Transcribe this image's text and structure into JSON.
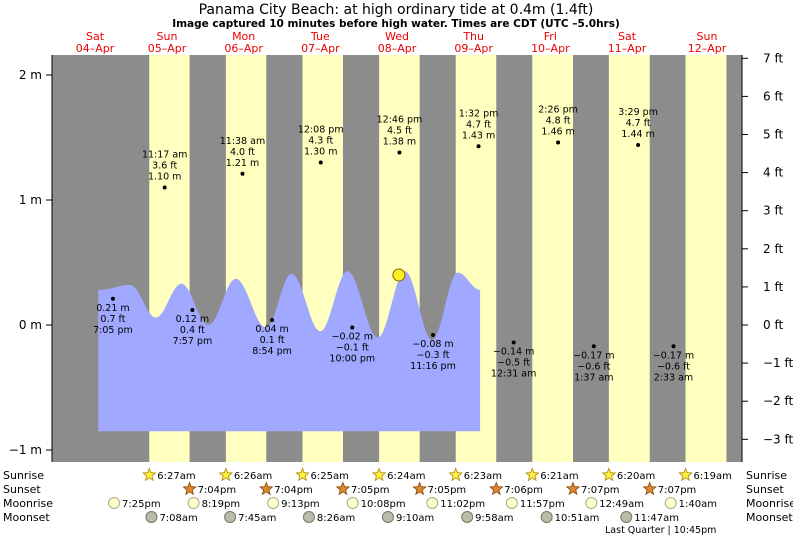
{
  "header": {
    "title": "Panama City Beach: at high  ordinary tide at 0.4m (1.4ft)",
    "subtitle": "Image captured 10 minutes before high water. Times are CDT (UTC –5.0hrs)"
  },
  "days": [
    {
      "dow": "Sat",
      "date": "04–Apr"
    },
    {
      "dow": "Sun",
      "date": "05–Apr"
    },
    {
      "dow": "Mon",
      "date": "06–Apr"
    },
    {
      "dow": "Tue",
      "date": "07–Apr"
    },
    {
      "dow": "Wed",
      "date": "08–Apr"
    },
    {
      "dow": "Thu",
      "date": "09–Apr"
    },
    {
      "dow": "Fri",
      "date": "10–Apr"
    },
    {
      "dow": "Sat",
      "date": "11–Apr"
    },
    {
      "dow": "Sun",
      "date": "12–Apr"
    }
  ],
  "chart_data": {
    "type": "area",
    "x_unit": "hours from 00:00 Sat 04-Apr (CDT)",
    "ylim_m": [
      -1.05,
      2.1
    ],
    "left_axis_ticks": [
      {
        "value": -1,
        "label": "−1 m"
      },
      {
        "value": 0,
        "label": "0 m"
      },
      {
        "value": 1,
        "label": "1 m"
      },
      {
        "value": 2,
        "label": "2 m"
      }
    ],
    "right_axis_ticks": [
      {
        "value": -3,
        "label": "−3 ft"
      },
      {
        "value": -2,
        "label": "−2 ft"
      },
      {
        "value": -1,
        "label": "−1 ft"
      },
      {
        "value": 0,
        "label": "0 ft"
      },
      {
        "value": 1,
        "label": "1 ft"
      },
      {
        "value": 2,
        "label": "2 ft"
      },
      {
        "value": 3,
        "label": "3 ft"
      },
      {
        "value": 4,
        "label": "4 ft"
      },
      {
        "value": 5,
        "label": "5 ft"
      },
      {
        "value": 6,
        "label": "6 ft"
      },
      {
        "value": 7,
        "label": "7 ft"
      }
    ],
    "tide_curve": {
      "start_value": 0.28,
      "end_value": 0.3,
      "bottom_value": -0.85,
      "points": [
        [
          14.5,
          0.28
        ],
        [
          24.5,
          0.32
        ],
        [
          32.5,
          0.06
        ],
        [
          40.5,
          0.33
        ],
        [
          49.0,
          0.0
        ],
        [
          57.5,
          0.37
        ],
        [
          67.0,
          -0.02
        ],
        [
          75.0,
          0.41
        ],
        [
          84.0,
          -0.05
        ],
        [
          92.5,
          0.43
        ],
        [
          102.0,
          -0.1
        ],
        [
          110.5,
          0.43
        ],
        [
          119.0,
          -0.12
        ],
        [
          127.0,
          0.42
        ],
        [
          134.0,
          0.28
        ]
      ]
    },
    "daylight": [
      {
        "rise": 30.45,
        "set": 43.07
      },
      {
        "rise": 54.43,
        "set": 67.07
      },
      {
        "rise": 78.42,
        "set": 91.08
      },
      {
        "rise": 102.4,
        "set": 115.08
      },
      {
        "rise": 126.38,
        "set": 139.08
      },
      {
        "rise": 150.35,
        "set": 163.1
      },
      {
        "rise": 174.33,
        "set": 187.12
      },
      {
        "rise": 198.32,
        "set": 211.12
      }
    ],
    "highs": [
      {
        "hour": 35.28,
        "m": 1.1,
        "time": "11:17 am",
        "ft": "3.6 ft",
        "m_label": "1.10 m"
      },
      {
        "hour": 59.63,
        "m": 1.21,
        "time": "11:38 am",
        "ft": "4.0 ft",
        "m_label": "1.21 m"
      },
      {
        "hour": 84.13,
        "m": 1.3,
        "time": "12:08 pm",
        "ft": "4.3 ft",
        "m_label": "1.30 m"
      },
      {
        "hour": 108.77,
        "m": 1.38,
        "time": "12:46 pm",
        "ft": "4.5 ft",
        "m_label": "1.38 m"
      },
      {
        "hour": 133.53,
        "m": 1.43,
        "time": "1:32 pm",
        "ft": "4.7 ft",
        "m_label": "1.43 m"
      },
      {
        "hour": 158.43,
        "m": 1.46,
        "time": "2:26 pm",
        "ft": "4.8 ft",
        "m_label": "1.46 m"
      },
      {
        "hour": 183.48,
        "m": 1.44,
        "time": "3:29 pm",
        "ft": "4.7 ft",
        "m_label": "1.44 m"
      }
    ],
    "lows": [
      {
        "hour": 19.08,
        "m": 0.21,
        "time": "7:05 pm",
        "ft": "0.7 ft",
        "m_label": "0.21 m"
      },
      {
        "hour": 43.95,
        "m": 0.12,
        "time": "7:57 pm",
        "ft": "0.4 ft",
        "m_label": "0.12 m"
      },
      {
        "hour": 68.9,
        "m": 0.04,
        "time": "8:54 pm",
        "ft": "0.1 ft",
        "m_label": "0.04 m"
      },
      {
        "hour": 94.0,
        "m": -0.02,
        "time": "10:00 pm",
        "ft": "−0.1 ft",
        "m_label": "−0.02 m"
      },
      {
        "hour": 119.27,
        "m": -0.08,
        "time": "11:16 pm",
        "ft": "−0.3 ft",
        "m_label": "−0.08 m"
      },
      {
        "hour": 144.52,
        "m": -0.14,
        "time": "12:31 am",
        "ft": "−0.5 ft",
        "m_label": "−0.14 m"
      },
      {
        "hour": 169.62,
        "m": -0.17,
        "time": "1:37 am",
        "ft": "−0.6 ft",
        "m_label": "−0.17 m"
      },
      {
        "hour": 194.55,
        "m": -0.17,
        "time": "2:33 am",
        "ft": "−0.6 ft",
        "m_label": "−0.17 m"
      }
    ],
    "current_tide": {
      "hour": 108.6,
      "m": 0.4
    },
    "colors": {
      "night": "#8c8c8c",
      "day": "#ffffc0",
      "water": "#a0a8ff",
      "marker": "#ffee22",
      "date_text": "#ee0000"
    }
  },
  "astro": {
    "labels": {
      "sunrise": "Sunrise",
      "sunset": "Sunset",
      "moonrise": "Moonrise",
      "moonset": "Moonset"
    },
    "sunrise": [
      {
        "hour": 30.45,
        "text": "6:27am"
      },
      {
        "hour": 54.43,
        "text": "6:26am"
      },
      {
        "hour": 78.42,
        "text": "6:25am"
      },
      {
        "hour": 102.4,
        "text": "6:24am"
      },
      {
        "hour": 126.38,
        "text": "6:23am"
      },
      {
        "hour": 150.35,
        "text": "6:21am"
      },
      {
        "hour": 174.33,
        "text": "6:20am"
      },
      {
        "hour": 198.32,
        "text": "6:19am"
      }
    ],
    "sunset": [
      {
        "hour": 43.07,
        "text": "7:04pm"
      },
      {
        "hour": 67.07,
        "text": "7:04pm"
      },
      {
        "hour": 91.08,
        "text": "7:05pm"
      },
      {
        "hour": 115.08,
        "text": "7:05pm"
      },
      {
        "hour": 139.08,
        "text": "7:06pm"
      },
      {
        "hour": 163.1,
        "text": "7:07pm"
      },
      {
        "hour": 187.12,
        "text": "7:07pm"
      }
    ],
    "moonrise": [
      {
        "hour": 19.42,
        "text": "7:25pm"
      },
      {
        "hour": 44.32,
        "text": "8:19pm"
      },
      {
        "hour": 69.22,
        "text": "9:13pm"
      },
      {
        "hour": 94.13,
        "text": "10:08pm"
      },
      {
        "hour": 119.03,
        "text": "11:02pm"
      },
      {
        "hour": 143.95,
        "text": "11:57pm"
      },
      {
        "hour": 168.82,
        "text": "12:49am"
      },
      {
        "hour": 193.67,
        "text": "1:40am"
      }
    ],
    "moonset": [
      {
        "hour": 31.13,
        "text": "7:08am"
      },
      {
        "hour": 55.75,
        "text": "7:45am"
      },
      {
        "hour": 80.43,
        "text": "8:26am"
      },
      {
        "hour": 105.17,
        "text": "9:10am"
      },
      {
        "hour": 129.97,
        "text": "9:58am"
      },
      {
        "hour": 154.85,
        "text": "10:51am"
      },
      {
        "hour": 179.78,
        "text": "11:47am"
      }
    ],
    "moon_phase": "Last Quarter | 10:45pm"
  }
}
